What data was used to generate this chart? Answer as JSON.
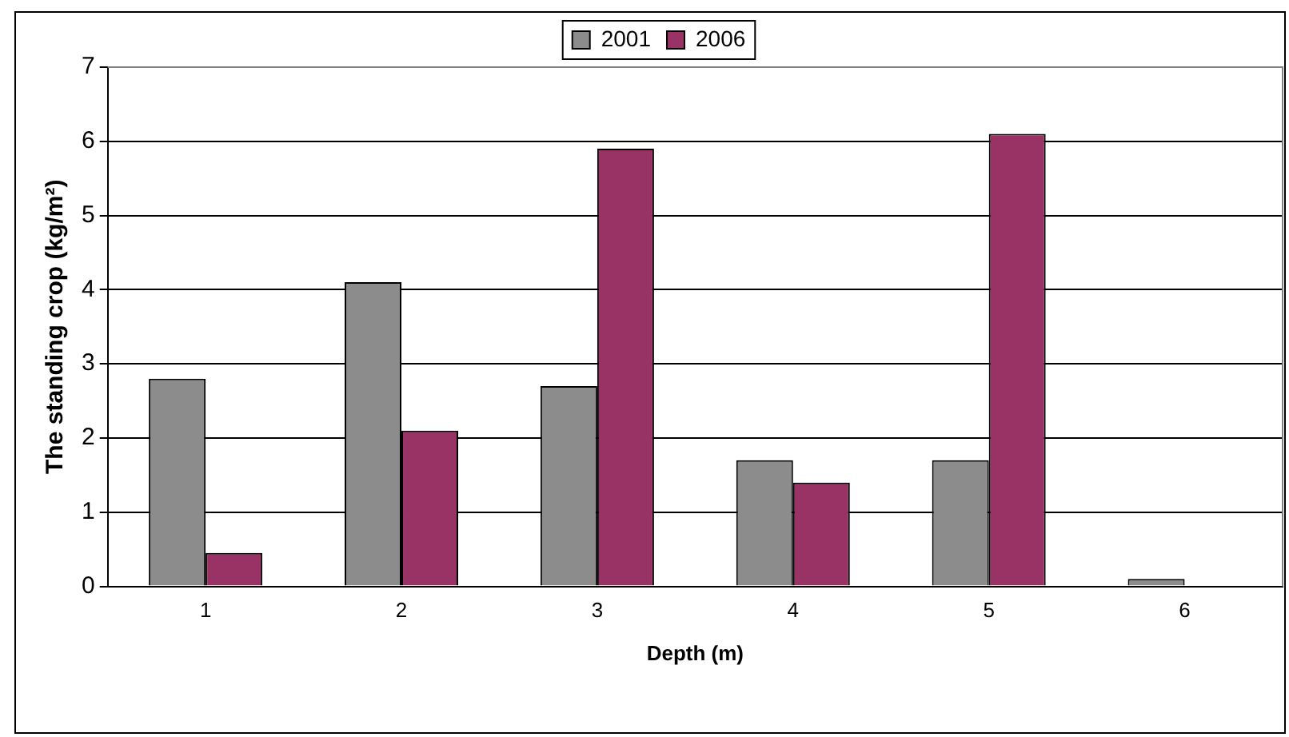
{
  "chart_data": {
    "type": "bar",
    "xlabel": "Depth (m)",
    "ylabel": "The standing crop (kg/m²)",
    "categories": [
      "1",
      "2",
      "3",
      "4",
      "5",
      "6"
    ],
    "series": [
      {
        "name": "2001",
        "color": "#8c8c8c",
        "values": [
          2.8,
          4.1,
          2.7,
          1.7,
          1.7,
          0.1
        ]
      },
      {
        "name": "2006",
        "color": "#993366",
        "values": [
          0.45,
          2.1,
          5.9,
          1.4,
          6.1,
          null
        ]
      }
    ],
    "ylim": [
      0,
      7
    ],
    "yticks": [
      0,
      1,
      2,
      3,
      4,
      5,
      6,
      7
    ],
    "grid": "y",
    "legend": "top"
  }
}
